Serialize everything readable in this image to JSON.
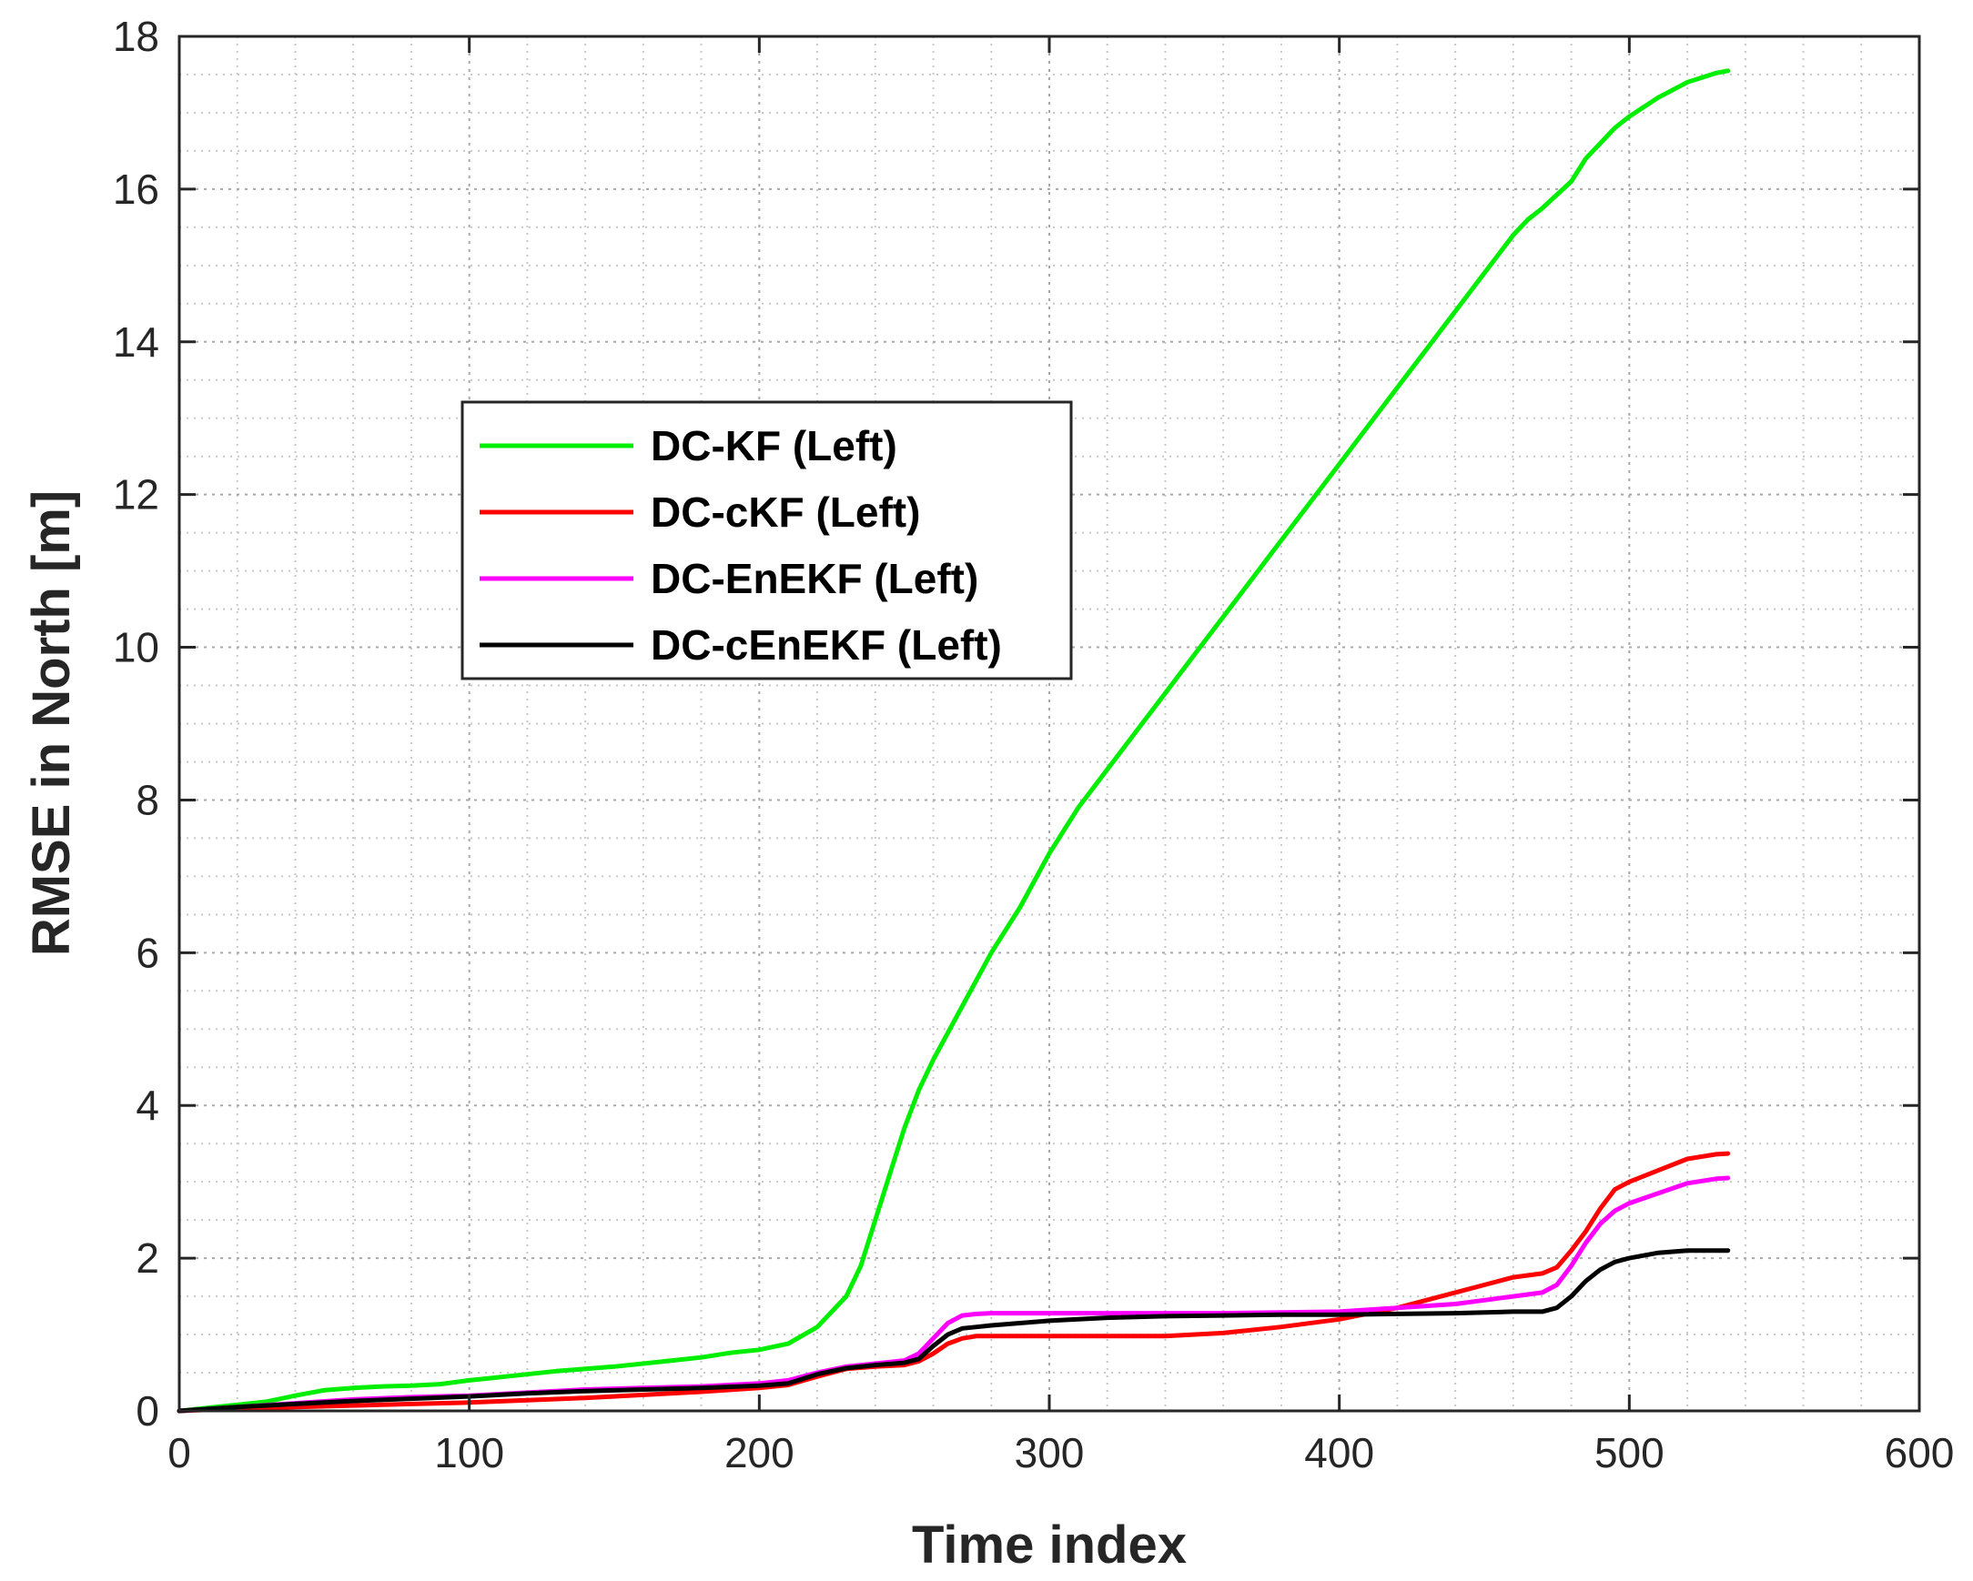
{
  "chart_data": {
    "type": "line",
    "xlabel": "Time index",
    "ylabel": "RMSE in North [m]",
    "xlim": [
      0,
      600
    ],
    "ylim": [
      0,
      18
    ],
    "xticks": [
      0,
      100,
      200,
      300,
      400,
      500,
      600
    ],
    "yticks": [
      0,
      2,
      4,
      6,
      8,
      10,
      12,
      14,
      16,
      18
    ],
    "grid": "major and minor (dotted)",
    "legend_position": "upper-left-center",
    "series": [
      {
        "name": "DC-KF (Left)",
        "color": "#00ee00",
        "x": [
          0,
          10,
          20,
          30,
          40,
          50,
          60,
          70,
          80,
          90,
          100,
          110,
          120,
          130,
          140,
          150,
          160,
          170,
          180,
          190,
          200,
          210,
          220,
          230,
          235,
          240,
          245,
          250,
          255,
          260,
          270,
          280,
          290,
          300,
          310,
          320,
          330,
          340,
          350,
          360,
          370,
          380,
          390,
          400,
          410,
          420,
          430,
          440,
          450,
          460,
          465,
          470,
          480,
          485,
          490,
          495,
          500,
          510,
          520,
          530,
          534
        ],
        "values": [
          0,
          0.04,
          0.08,
          0.12,
          0.2,
          0.27,
          0.3,
          0.32,
          0.33,
          0.35,
          0.4,
          0.44,
          0.48,
          0.52,
          0.55,
          0.58,
          0.62,
          0.66,
          0.7,
          0.76,
          0.8,
          0.88,
          1.1,
          1.5,
          1.9,
          2.5,
          3.1,
          3.7,
          4.2,
          4.6,
          5.3,
          6.0,
          6.6,
          7.3,
          7.9,
          8.4,
          8.9,
          9.4,
          9.9,
          10.4,
          10.9,
          11.4,
          11.9,
          12.4,
          12.9,
          13.4,
          13.9,
          14.4,
          14.9,
          15.4,
          15.6,
          15.75,
          16.1,
          16.4,
          16.6,
          16.8,
          16.95,
          17.2,
          17.4,
          17.52,
          17.55
        ]
      },
      {
        "name": "DC-cKF (Left)",
        "color": "#ff0000",
        "x": [
          0,
          20,
          40,
          60,
          80,
          100,
          120,
          140,
          160,
          180,
          200,
          210,
          220,
          230,
          240,
          250,
          255,
          260,
          265,
          270,
          275,
          280,
          300,
          320,
          340,
          360,
          380,
          400,
          420,
          440,
          450,
          460,
          470,
          475,
          480,
          485,
          490,
          495,
          500,
          510,
          520,
          530,
          534
        ],
        "values": [
          0,
          0.03,
          0.05,
          0.07,
          0.09,
          0.11,
          0.14,
          0.17,
          0.21,
          0.25,
          0.3,
          0.34,
          0.45,
          0.55,
          0.58,
          0.6,
          0.65,
          0.75,
          0.88,
          0.95,
          0.98,
          0.98,
          0.98,
          0.98,
          0.98,
          1.02,
          1.1,
          1.2,
          1.35,
          1.55,
          1.65,
          1.75,
          1.8,
          1.88,
          2.1,
          2.35,
          2.65,
          2.9,
          3.0,
          3.15,
          3.3,
          3.36,
          3.37
        ]
      },
      {
        "name": "DC-EnEKF (Left)",
        "color": "#ff00ff",
        "x": [
          0,
          20,
          40,
          60,
          80,
          100,
          120,
          140,
          160,
          180,
          200,
          210,
          220,
          230,
          240,
          250,
          255,
          260,
          265,
          270,
          275,
          280,
          300,
          320,
          340,
          360,
          380,
          400,
          420,
          440,
          450,
          460,
          470,
          475,
          480,
          485,
          490,
          495,
          500,
          510,
          520,
          530,
          534
        ],
        "values": [
          0,
          0.05,
          0.1,
          0.15,
          0.18,
          0.2,
          0.24,
          0.28,
          0.3,
          0.32,
          0.36,
          0.4,
          0.5,
          0.58,
          0.62,
          0.66,
          0.75,
          0.95,
          1.15,
          1.25,
          1.27,
          1.28,
          1.28,
          1.28,
          1.28,
          1.28,
          1.29,
          1.3,
          1.35,
          1.4,
          1.45,
          1.5,
          1.55,
          1.65,
          1.9,
          2.2,
          2.45,
          2.62,
          2.72,
          2.85,
          2.98,
          3.04,
          3.05
        ]
      },
      {
        "name": "DC-cEnEKF (Left)",
        "color": "#000000",
        "x": [
          0,
          20,
          40,
          60,
          80,
          100,
          120,
          140,
          160,
          180,
          200,
          210,
          220,
          230,
          240,
          250,
          255,
          260,
          265,
          270,
          275,
          280,
          300,
          320,
          340,
          360,
          380,
          400,
          420,
          440,
          460,
          470,
          475,
          480,
          485,
          490,
          495,
          500,
          510,
          520,
          530,
          534
        ],
        "values": [
          0,
          0.05,
          0.09,
          0.13,
          0.16,
          0.19,
          0.23,
          0.26,
          0.28,
          0.3,
          0.33,
          0.36,
          0.48,
          0.56,
          0.6,
          0.63,
          0.68,
          0.85,
          1.0,
          1.08,
          1.1,
          1.12,
          1.18,
          1.22,
          1.24,
          1.25,
          1.26,
          1.26,
          1.27,
          1.28,
          1.3,
          1.3,
          1.35,
          1.5,
          1.7,
          1.85,
          1.95,
          2.0,
          2.07,
          2.1,
          2.1,
          2.1
        ]
      }
    ]
  }
}
